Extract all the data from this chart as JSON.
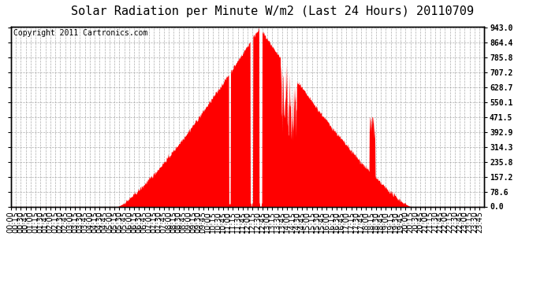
{
  "title": "Solar Radiation per Minute W/m2 (Last 24 Hours) 20110709",
  "copyright": "Copyright 2011 Cartronics.com",
  "y_ticks": [
    0.0,
    78.6,
    157.2,
    235.8,
    314.3,
    392.9,
    471.5,
    550.1,
    628.7,
    707.2,
    785.8,
    864.4,
    943.0
  ],
  "y_max": 943.0,
  "y_min": 0.0,
  "fill_color": "#FF0000",
  "background_color": "#FFFFFF",
  "plot_bg_color": "#FFFFFF",
  "grid_color": "#999999",
  "dashed_line_color": "#FF0000",
  "title_fontsize": 11,
  "copyright_fontsize": 7,
  "tick_fontsize": 7,
  "sunrise": 325,
  "sunset": 1215,
  "peak_time": 755,
  "peak_value": 943.0,
  "x_label_interval": 15
}
